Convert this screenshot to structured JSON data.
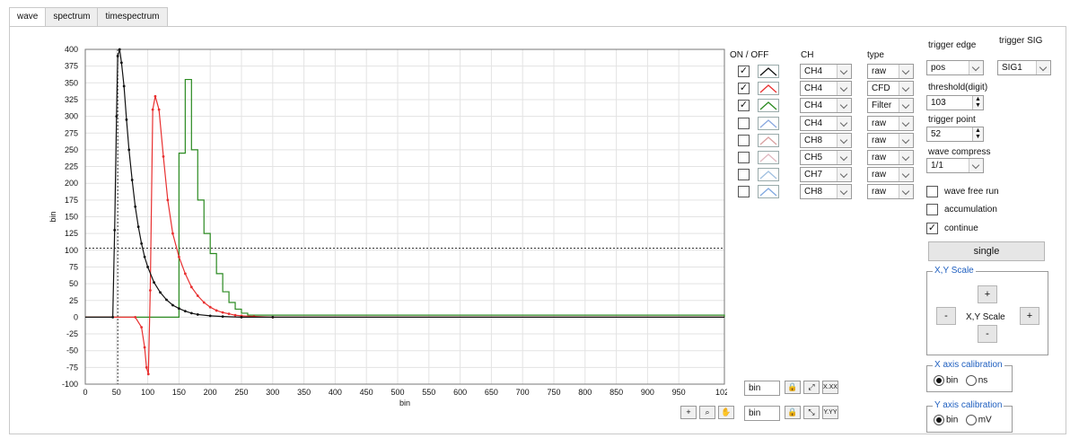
{
  "tabs": [
    {
      "label": "wave",
      "active": true
    },
    {
      "label": "spectrum",
      "active": false
    },
    {
      "label": "timespectrum",
      "active": false
    }
  ],
  "channels": {
    "headers": {
      "onoff": "ON / OFF",
      "ch": "CH",
      "type": "type"
    },
    "rows": [
      {
        "on": true,
        "icon_color": "#111111",
        "ch": "CH4",
        "type": "raw"
      },
      {
        "on": true,
        "icon_color": "#e83030",
        "ch": "CH4",
        "type": "CFD"
      },
      {
        "on": true,
        "icon_color": "#2a8a20",
        "ch": "CH4",
        "type": "Filter"
      },
      {
        "on": false,
        "icon_color": "#8aa8e0",
        "ch": "CH4",
        "type": "raw"
      },
      {
        "on": false,
        "icon_color": "#d8a0a0",
        "ch": "CH8",
        "type": "raw"
      },
      {
        "on": false,
        "icon_color": "#e0b8c0",
        "ch": "CH5",
        "type": "raw"
      },
      {
        "on": false,
        "icon_color": "#a0c0e0",
        "ch": "CH7",
        "type": "raw"
      },
      {
        "on": false,
        "icon_color": "#80a8e0",
        "ch": "CH8",
        "type": "raw"
      }
    ]
  },
  "trigger": {
    "edge_label": "trigger edge",
    "edge_value": "pos",
    "sig_label": "trigger SIG",
    "sig_value": "SIG1",
    "threshold_label": "threshold(digit)",
    "threshold_value": "103",
    "point_label": "trigger point",
    "point_value": "52",
    "compress_label": "wave compress",
    "compress_value": "1/1"
  },
  "options": {
    "wave_free_run": {
      "label": "wave free run",
      "checked": false
    },
    "accumulation": {
      "label": "accumulation",
      "checked": false
    },
    "continue": {
      "label": "continue",
      "checked": true
    },
    "single_label": "single"
  },
  "xy_scale": {
    "title": "X,Y Scale",
    "plus": "+",
    "minus": "-",
    "label": "X,Y Scale"
  },
  "x_calibration": {
    "title": "X axis calibration",
    "opt1": "bin",
    "opt2": "ns",
    "selected": "bin"
  },
  "y_calibration": {
    "title": "Y axis calibration",
    "opt1": "bin",
    "opt2": "mV",
    "selected": "bin"
  },
  "scale_rows": {
    "x_unit": "bin",
    "y_unit": "bin",
    "x_fmt": "X.XX",
    "y_fmt": "Y.YY"
  },
  "chart_data": {
    "type": "line",
    "title": "",
    "xlabel": "bin",
    "ylabel": "bin",
    "xlim": [
      0,
      1023
    ],
    "ylim": [
      -100,
      400
    ],
    "grid": true,
    "x_ticks": [
      0,
      50,
      100,
      150,
      200,
      250,
      300,
      350,
      400,
      450,
      500,
      550,
      600,
      650,
      700,
      750,
      800,
      850,
      900,
      950,
      1023
    ],
    "y_ticks": [
      400,
      375,
      350,
      325,
      300,
      275,
      250,
      225,
      200,
      175,
      150,
      125,
      100,
      75,
      50,
      25,
      0,
      -25,
      -50,
      -75,
      -100
    ],
    "threshold_y": 103,
    "trigger_x": 52,
    "series": [
      {
        "color": "#2a8a20",
        "kind": "step",
        "x": [
          0,
          145,
          150,
          160,
          170,
          180,
          190,
          200,
          210,
          220,
          230,
          240,
          250,
          260,
          1023
        ],
        "y": [
          0,
          0,
          245,
          355,
          250,
          175,
          125,
          95,
          65,
          38,
          22,
          12,
          6,
          3,
          0
        ]
      },
      {
        "color": "#e83030",
        "kind": "line",
        "x": [
          0,
          80,
          90,
          95,
          98,
          101,
          104,
          108,
          112,
          118,
          125,
          132,
          140,
          150,
          160,
          170,
          180,
          190,
          200,
          210,
          220,
          230,
          240,
          250,
          270,
          300,
          1023
        ],
        "y": [
          0,
          0,
          -15,
          -45,
          -75,
          -85,
          40,
          310,
          330,
          310,
          240,
          175,
          125,
          90,
          65,
          45,
          32,
          22,
          15,
          10,
          7,
          5,
          3,
          2,
          1,
          0,
          0
        ]
      },
      {
        "color": "#111111",
        "kind": "line",
        "x": [
          0,
          44,
          47,
          50,
          52,
          55,
          58,
          62,
          66,
          70,
          75,
          80,
          85,
          90,
          95,
          100,
          110,
          120,
          130,
          140,
          150,
          160,
          170,
          180,
          200,
          220,
          250,
          300,
          1023
        ],
        "y": [
          0,
          0,
          130,
          300,
          390,
          400,
          380,
          345,
          295,
          250,
          205,
          165,
          135,
          110,
          90,
          75,
          52,
          37,
          26,
          18,
          13,
          9,
          6,
          4,
          2,
          1,
          0,
          0,
          0
        ]
      }
    ]
  }
}
